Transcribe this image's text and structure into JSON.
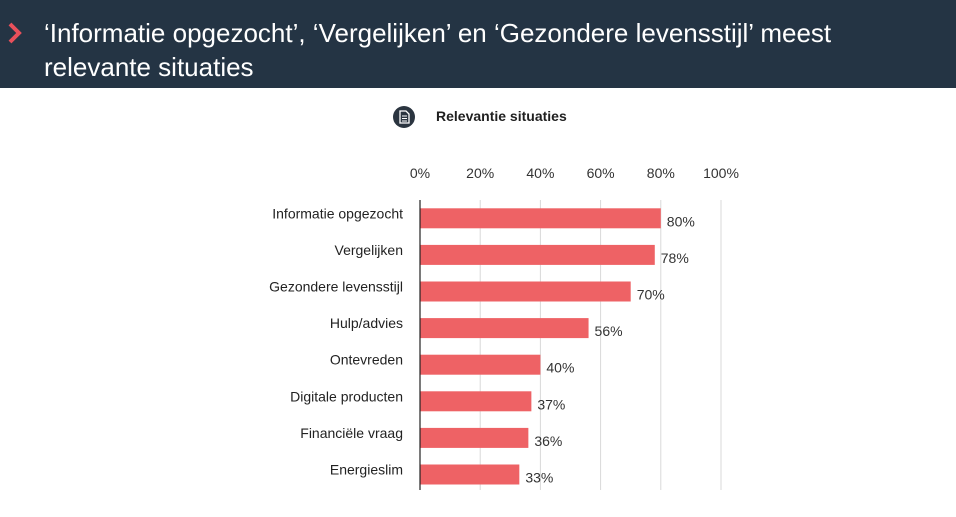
{
  "header": {
    "title": "‘Informatie opgezocht’, ‘Vergelijken’ en ‘Gezondere levensstijl’ meest relevante situaties"
  },
  "colors": {
    "header_bg": "#243444",
    "accent": "#e8505b",
    "bar": "#ee6265",
    "icon": "#2b3540"
  },
  "icons": {
    "chevron": "chevron-right-icon",
    "chart_icon": "document-icon"
  },
  "chart_data": {
    "type": "bar",
    "orientation": "horizontal",
    "title": "Relevantie situaties",
    "categories": [
      "Informatie opgezocht",
      "Vergelijken",
      "Gezondere levensstijl",
      "Hulp/advies",
      "Ontevreden",
      "Digitale producten",
      "Financiële vraag",
      "Energieslim"
    ],
    "values": [
      80,
      78,
      70,
      56,
      40,
      37,
      36,
      33
    ],
    "value_labels": [
      "80%",
      "78%",
      "70%",
      "56%",
      "40%",
      "37%",
      "36%",
      "33%"
    ],
    "xlim": [
      0,
      100
    ],
    "ticks": [
      0,
      20,
      40,
      60,
      80,
      100
    ],
    "tick_labels": [
      "0%",
      "20%",
      "40%",
      "60%",
      "80%",
      "100%"
    ],
    "axis_position": "top",
    "grid": true,
    "xlabel": "",
    "ylabel": ""
  }
}
